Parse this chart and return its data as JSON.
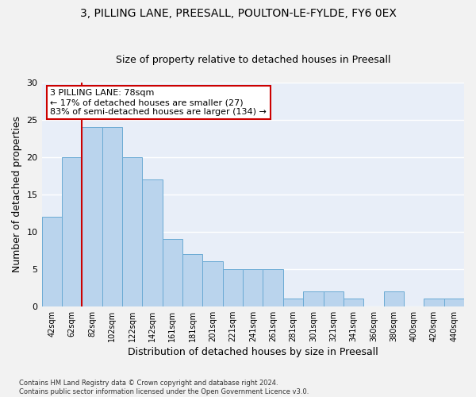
{
  "title_line1": "3, PILLING LANE, PREESALL, POULTON-LE-FYLDE, FY6 0EX",
  "title_line2": "Size of property relative to detached houses in Preesall",
  "xlabel": "Distribution of detached houses by size in Preesall",
  "ylabel": "Number of detached properties",
  "footnote": "Contains HM Land Registry data © Crown copyright and database right 2024.\nContains public sector information licensed under the Open Government Licence v3.0.",
  "bar_labels": [
    "42sqm",
    "62sqm",
    "82sqm",
    "102sqm",
    "122sqm",
    "142sqm",
    "161sqm",
    "181sqm",
    "201sqm",
    "221sqm",
    "241sqm",
    "261sqm",
    "281sqm",
    "301sqm",
    "321sqm",
    "341sqm",
    "360sqm",
    "380sqm",
    "400sqm",
    "420sqm",
    "440sqm"
  ],
  "bar_values": [
    12,
    20,
    24,
    24,
    20,
    17,
    9,
    7,
    6,
    5,
    5,
    5,
    1,
    2,
    2,
    1,
    0,
    2,
    0,
    1,
    1
  ],
  "bar_color": "#bad4ed",
  "bar_edge_color": "#6aaad4",
  "annotation_text": "3 PILLING LANE: 78sqm\n← 17% of detached houses are smaller (27)\n83% of semi-detached houses are larger (134) →",
  "annotation_box_color": "#ffffff",
  "annotation_box_edge": "#cc0000",
  "vline_color": "#cc0000",
  "vline_x": 1.5,
  "ylim": [
    0,
    30
  ],
  "yticks": [
    0,
    5,
    10,
    15,
    20,
    25,
    30
  ],
  "bg_color": "#e8eef8",
  "grid_color": "#ffffff",
  "fig_bg": "#f2f2f2",
  "title_fontsize": 10,
  "subtitle_fontsize": 9,
  "ylabel_fontsize": 9,
  "xlabel_fontsize": 9,
  "tick_fontsize": 7,
  "annotation_fontsize": 8,
  "footnote_fontsize": 6
}
